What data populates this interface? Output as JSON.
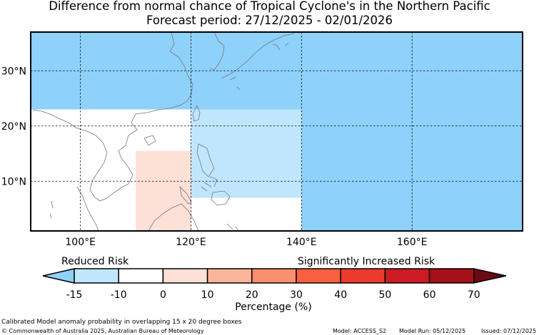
{
  "title": "Difference from normal chance of Tropical Cyclone's in the Northern Pacific",
  "subtitle": "Forecast period: 27/12/2025 - 02/01/2026",
  "map": {
    "lon_range": [
      91,
      180
    ],
    "lat_range": [
      1,
      37
    ],
    "lon_ticks": [
      100,
      120,
      140,
      160
    ],
    "lon_tick_labels": [
      "100°E",
      "120°E",
      "140°E",
      "160°E"
    ],
    "lat_ticks": [
      10,
      20,
      30
    ],
    "lat_tick_labels": [
      "10°N",
      "20°N",
      "30°N"
    ],
    "grid": true,
    "regions": [
      {
        "lon": [
          91,
          180
        ],
        "lat": [
          23,
          37
        ],
        "value": -15,
        "color": "#8ed1fb"
      },
      {
        "lon": [
          140,
          180
        ],
        "lat": [
          1,
          23
        ],
        "value": -15,
        "color": "#8ed1fb"
      },
      {
        "lon": [
          120,
          140
        ],
        "lat": [
          7,
          23
        ],
        "value": -10,
        "color": "#bfe6fd"
      },
      {
        "lon": [
          110,
          120
        ],
        "lat": [
          1,
          15.5
        ],
        "value": 10,
        "color": "#fde0d6"
      }
    ]
  },
  "colorbar": {
    "label_left": "Reduced Risk",
    "label_right": "Significantly Increased Risk",
    "ticks": [
      "-15",
      "-10",
      "0",
      "10",
      "20",
      "30",
      "40",
      "50",
      "60",
      "70"
    ],
    "colors": [
      "#8ed1fb",
      "#bfe6fd",
      "#ffffff",
      "#fde0d6",
      "#fcb49a",
      "#fb8f6e",
      "#f8603f",
      "#ec3a2c",
      "#cc1b22",
      "#a6101a",
      "#6b0a12"
    ],
    "xlabel": "Percentage (%)"
  },
  "footer": {
    "caption": "Calibrated Model anomaly probability in overlapping 15 x 20 degree boxes",
    "copyright": "© Commonwealth of Australia 2025, Australian Bureau of Meteorology",
    "model": "Model: ACCESS_S2",
    "model_run": "Model Run: 05/12/2025",
    "issued": "Issued: 07/12/2025"
  }
}
